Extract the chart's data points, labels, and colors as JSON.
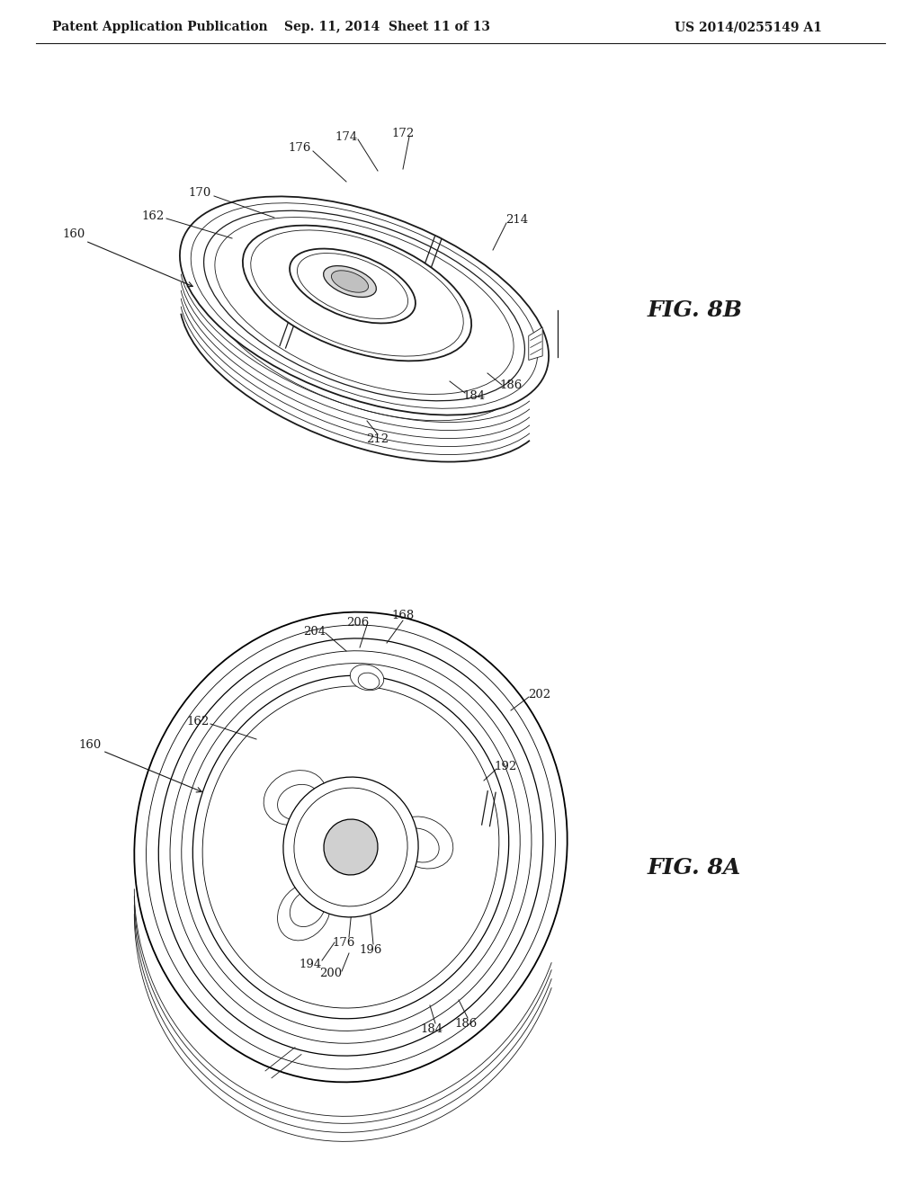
{
  "header_left": "Patent Application Publication",
  "header_center": "Sep. 11, 2014  Sheet 11 of 13",
  "header_right": "US 2014/0255149 A1",
  "fig_top_label": "FIG. 8B",
  "fig_bottom_label": "FIG. 8A",
  "bg_color": "#ffffff",
  "line_color": "#1a1a1a",
  "text_color": "#1a1a1a",
  "header_fontsize": 10,
  "annotation_fontsize": 9.5,
  "fig_label_fontsize": 18
}
